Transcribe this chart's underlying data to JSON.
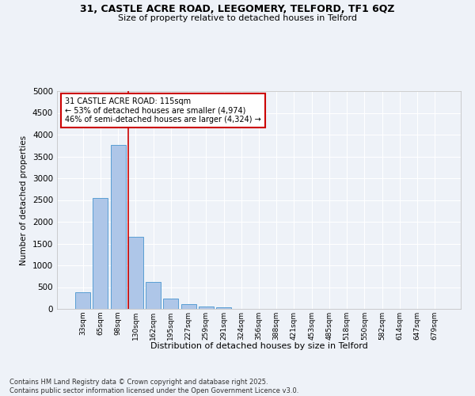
{
  "title_line1": "31, CASTLE ACRE ROAD, LEEGOMERY, TELFORD, TF1 6QZ",
  "title_line2": "Size of property relative to detached houses in Telford",
  "xlabel": "Distribution of detached houses by size in Telford",
  "ylabel": "Number of detached properties",
  "categories": [
    "33sqm",
    "65sqm",
    "98sqm",
    "130sqm",
    "162sqm",
    "195sqm",
    "227sqm",
    "259sqm",
    "291sqm",
    "324sqm",
    "356sqm",
    "388sqm",
    "421sqm",
    "453sqm",
    "485sqm",
    "518sqm",
    "550sqm",
    "582sqm",
    "614sqm",
    "647sqm",
    "679sqm"
  ],
  "values": [
    390,
    2540,
    3770,
    1650,
    620,
    230,
    110,
    55,
    30,
    0,
    0,
    0,
    0,
    0,
    0,
    0,
    0,
    0,
    0,
    0,
    0
  ],
  "bar_color": "#aec6e8",
  "bar_edgecolor": "#5a9fd4",
  "vline_index": 2.6,
  "vline_color": "#cc0000",
  "annotation_text": "31 CASTLE ACRE ROAD: 115sqm\n← 53% of detached houses are smaller (4,974)\n46% of semi-detached houses are larger (4,324) →",
  "annotation_box_color": "#cc0000",
  "ylim": [
    0,
    5000
  ],
  "yticks": [
    0,
    500,
    1000,
    1500,
    2000,
    2500,
    3000,
    3500,
    4000,
    4500,
    5000
  ],
  "background_color": "#eef2f8",
  "grid_color": "#ffffff",
  "footer_line1": "Contains HM Land Registry data © Crown copyright and database right 2025.",
  "footer_line2": "Contains public sector information licensed under the Open Government Licence v3.0."
}
